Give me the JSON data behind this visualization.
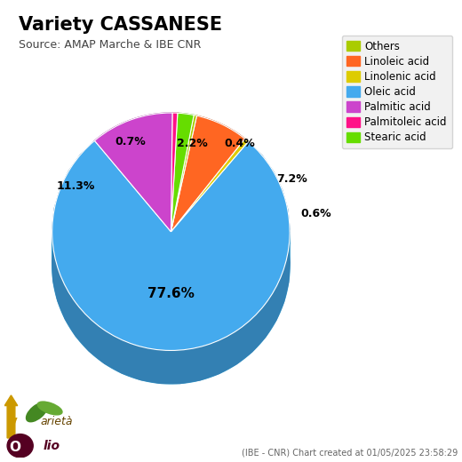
{
  "title": "Variety CASSANESE",
  "subtitle": "Source: AMAP Marche & IBE CNR",
  "footer": "(IBE - CNR) Chart created at 01/05/2025 23:58:29",
  "legend_labels": [
    "Others",
    "Linoleic acid",
    "Linolenic acid",
    "Oleic acid",
    "Palmitic acid",
    "Palmitoleic acid",
    "Stearic acid"
  ],
  "legend_colors": [
    "#aacc00",
    "#ff6622",
    "#ddcc00",
    "#44aaee",
    "#cc44cc",
    "#ff1188",
    "#66dd00"
  ],
  "ordered_labels": [
    "Oleic acid",
    "Linolenic acid",
    "Linoleic acid",
    "Others",
    "Stearic acid",
    "Palmitoleic acid",
    "Palmitic acid"
  ],
  "ordered_values": [
    77.6,
    0.6,
    7.2,
    0.4,
    2.2,
    0.7,
    11.3
  ],
  "ordered_colors": [
    "#44aaee",
    "#ddcc00",
    "#ff6622",
    "#aacc00",
    "#66dd00",
    "#ff1188",
    "#cc44cc"
  ],
  "background_color": "#ffffff",
  "depth_color": "#3399cc",
  "startangle": -230,
  "label_positions": {
    "77.6%": [
      0.0,
      -0.55
    ],
    "0.6%": [
      1.28,
      0.18
    ],
    "7.2%": [
      1.05,
      0.42
    ],
    "0.4%": [
      0.55,
      0.72
    ],
    "2.2%": [
      0.2,
      0.72
    ],
    "0.7%": [
      -0.3,
      0.72
    ],
    "11.3%": [
      -0.72,
      0.38
    ]
  }
}
